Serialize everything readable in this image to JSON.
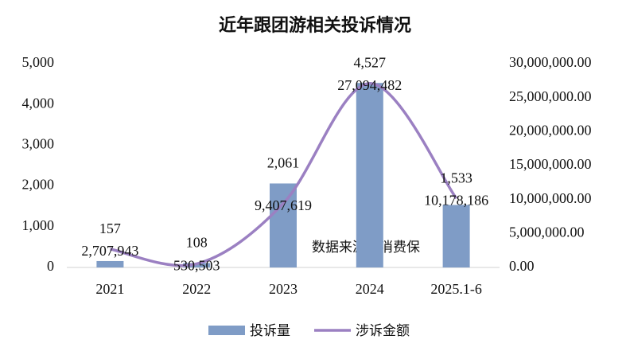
{
  "chart_data": {
    "type": "bar-line",
    "title": "近年跟团游相关投诉情况",
    "annotation": "数据来源：消费保",
    "categories": [
      "2021",
      "2022",
      "2023",
      "2024",
      "2025.1-6"
    ],
    "series": [
      {
        "name": "投诉量",
        "type": "bar",
        "color": "#7f9cc6",
        "values": [
          157,
          108,
          2061,
          4527,
          1533
        ],
        "value_labels": [
          "157",
          "108",
          "2,061",
          "4,527",
          "1,533"
        ]
      },
      {
        "name": "涉诉金额",
        "type": "line",
        "axis": "y2",
        "color": "#9b80c2",
        "values": [
          2707943,
          530503,
          9407619,
          27094482,
          10178186
        ],
        "value_labels": [
          "2,707,943",
          "530,503",
          "9,407,619",
          "27,094,482",
          "10,178,186"
        ]
      }
    ],
    "ylim": [
      0,
      5000
    ],
    "yticks": [
      0,
      {
        "value": 1000,
        "label": "1,000"
      },
      {
        "value": 2000,
        "label": "2,000"
      },
      {
        "value": 3000,
        "label": "3,000"
      },
      {
        "value": 4000,
        "label": "4,000"
      },
      {
        "value": 5000,
        "label": "5,000"
      }
    ],
    "y2lim": [
      0,
      30000000
    ],
    "y2ticks": [
      {
        "value": 0,
        "label": "0.00"
      },
      {
        "value": 5000000,
        "label": "5,000,000.00"
      },
      {
        "value": 10000000,
        "label": "10,000,000.00"
      },
      {
        "value": 15000000,
        "label": "15,000,000.00"
      },
      {
        "value": 20000000,
        "label": "20,000,000.00"
      },
      {
        "value": 25000000,
        "label": "25,000,000.00"
      },
      {
        "value": 30000000,
        "label": "30,000,000.00"
      }
    ],
    "grid": false
  }
}
